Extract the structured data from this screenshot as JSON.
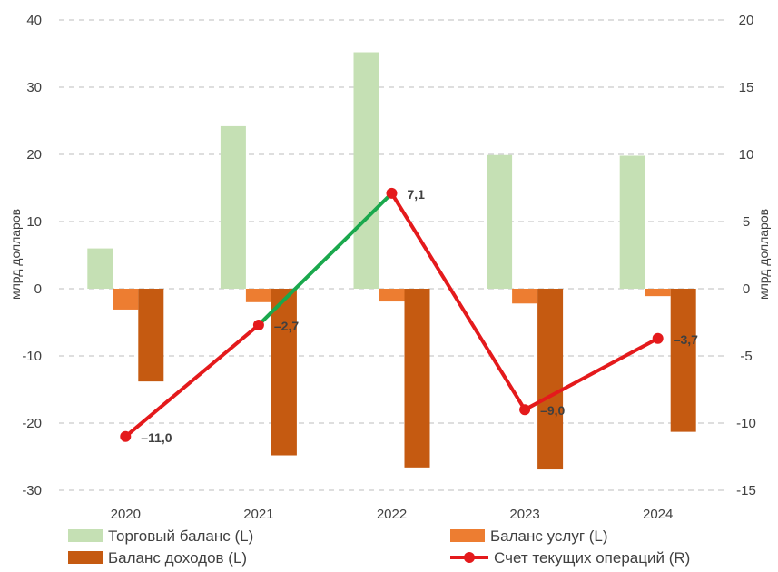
{
  "chart_data": {
    "type": "bar",
    "categories": [
      "2020",
      "2021",
      "2022",
      "2023",
      "2024"
    ],
    "series": [
      {
        "name": "Торговый баланс (L)",
        "type": "bar",
        "axis": "left",
        "color": "#c5e0b4",
        "values": [
          6,
          24.2,
          35.2,
          19.9,
          19.8
        ]
      },
      {
        "name": "Баланс услуг (L)",
        "type": "bar",
        "axis": "left",
        "color": "#ed7d31",
        "values": [
          -3.1,
          -2,
          -1.9,
          -2.2,
          -1.1
        ]
      },
      {
        "name": "Баланс доходов (L)",
        "type": "bar",
        "axis": "left",
        "color": "#c55a11",
        "values": [
          -13.8,
          -24.8,
          -26.6,
          -26.9,
          -21.3
        ]
      },
      {
        "name": "Счет текущих операций (R)",
        "type": "line",
        "axis": "right",
        "color": "#e41a1c",
        "highlight_color": "#1aa84d",
        "values": [
          -11.0,
          -2.7,
          7.1,
          -9.0,
          -3.7
        ],
        "labels": [
          "–11,0",
          "–2,7",
          "7,1",
          "–9,0",
          "–3,7"
        ]
      }
    ],
    "y_left": {
      "label": "млрд долларов",
      "ylim": [
        -30,
        40
      ],
      "ticks": [
        40,
        30,
        20,
        10,
        0,
        -10,
        -20,
        -30
      ]
    },
    "y_right": {
      "label": "млрд долларов",
      "ylim": [
        -15,
        20
      ],
      "ticks": [
        20,
        15,
        10,
        5,
        0,
        -5,
        -10,
        -15
      ]
    },
    "grid": true,
    "legend_position": "bottom"
  }
}
